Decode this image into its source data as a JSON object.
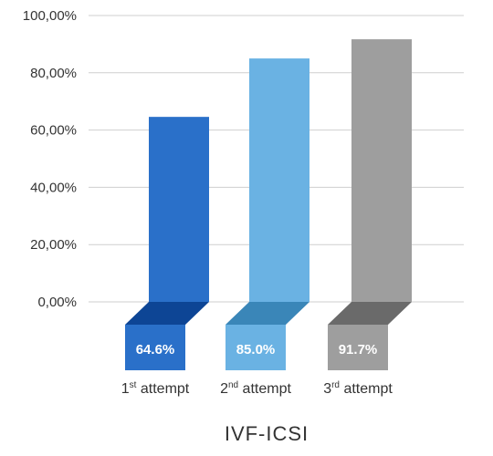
{
  "chart_data": {
    "type": "bar",
    "title": "IVF-ICSI",
    "categories": [
      "1st attempt",
      "2nd attempt",
      "3rd attempt"
    ],
    "category_parts": [
      {
        "num": "1",
        "sup": "st",
        "rest": " attempt"
      },
      {
        "num": "2",
        "sup": "nd",
        "rest": " attempt"
      },
      {
        "num": "3",
        "sup": "rd",
        "rest": " attempt"
      }
    ],
    "values": [
      64.6,
      85.0,
      91.7
    ],
    "value_labels": [
      "64.6%",
      "85.0%",
      "91.7%"
    ],
    "yticks": [
      0,
      20,
      40,
      60,
      80,
      100
    ],
    "ytick_labels": [
      "0,00%",
      "20,00%",
      "40,00%",
      "60,00%",
      "80,00%",
      "100,00%"
    ],
    "ylim": [
      0,
      100
    ],
    "grid": true,
    "colors": {
      "bars": [
        "#2a70c9",
        "#6ab2e3",
        "#9e9e9e"
      ],
      "top_face": [
        "#0d4595",
        "#3a86b8",
        "#6a6a6a"
      ]
    }
  }
}
